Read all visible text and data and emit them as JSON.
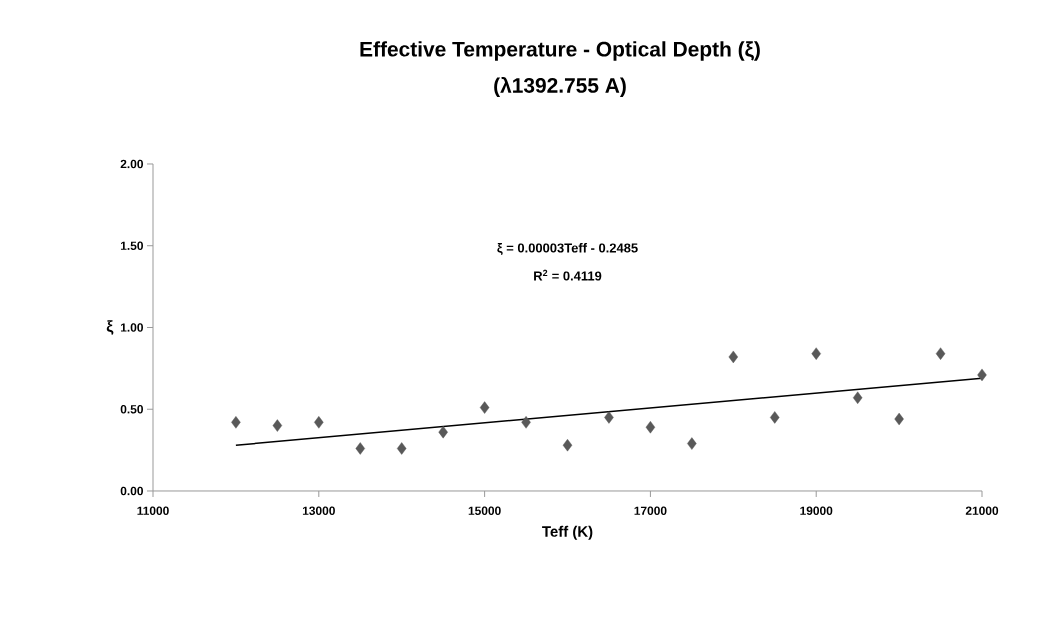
{
  "chart_data": {
    "type": "scatter",
    "title": "Effective Temperature - Optical Depth (ξ)",
    "subtitle": "(λ1392.755 A)",
    "xlabel": "Teff (K)",
    "ylabel": "ξ",
    "annotations": [
      "ξ = 0.00003Teff - 0.2485",
      "R$^{2}$ = 0.4119"
    ],
    "xlim": [
      11000,
      21000
    ],
    "xticks": [
      11000,
      13000,
      15000,
      17000,
      19000,
      21000
    ],
    "ylim": [
      0,
      2
    ],
    "yticks": [
      {
        "value": 0,
        "label": "0.00"
      },
      {
        "value": 0.5,
        "label": "0.50"
      },
      {
        "value": 1,
        "label": "1.00"
      },
      {
        "value": 1.5,
        "label": "1.50"
      },
      {
        "value": 2,
        "label": "2.00"
      }
    ],
    "grid": false,
    "legend": false,
    "series": [
      {
        "color": "#595959",
        "marker": "diamond",
        "x": [
          12000,
          12500,
          13000,
          13500,
          14000,
          14500,
          15000,
          15500,
          16000,
          16500,
          17000,
          17500,
          18000,
          18500,
          19000,
          19500,
          20000,
          20500,
          21000
        ],
        "values": [
          0.42,
          0.4,
          0.42,
          0.26,
          0.26,
          0.36,
          0.51,
          0.42,
          0.28,
          0.45,
          0.39,
          0.29,
          0.82,
          0.45,
          0.84,
          0.57,
          0.44,
          0.84,
          0.71
        ]
      },
      {
        "type": "line",
        "color": "#000000",
        "marker": "none",
        "line_style": "solid",
        "x": [
          12000,
          21000
        ],
        "values": [
          0.28,
          0.69
        ]
      }
    ]
  }
}
